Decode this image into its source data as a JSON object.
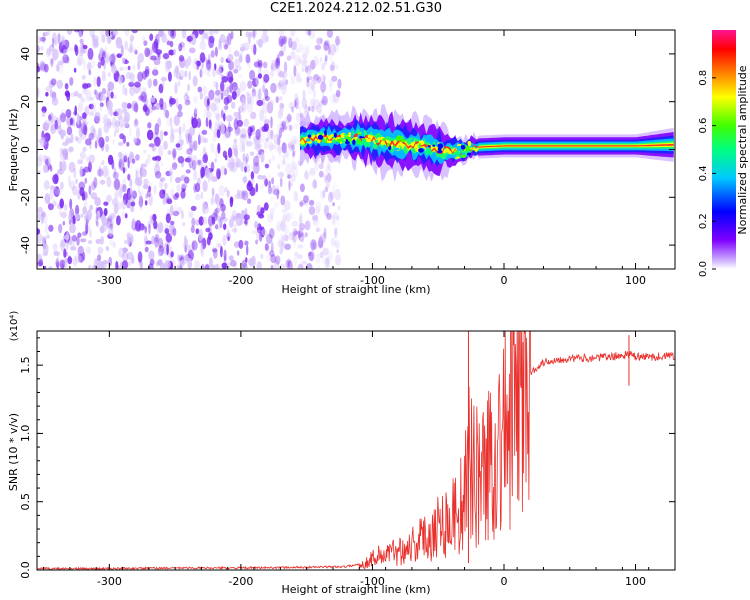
{
  "title": "C2E1.2024.212.02.51.G30",
  "colors": {
    "spectrogram_noise": "#7a28f0",
    "spectrogram_light": "#d6c2fb",
    "snr_line": "#e8302c"
  },
  "chart_data": [
    {
      "type": "heatmap",
      "title": "C2E1.2024.212.02.51.G30",
      "xlabel": "Height of straight line (km)",
      "ylabel": "Frequency (Hz)",
      "xlim": [
        -355,
        130
      ],
      "ylim": [
        -50,
        50
      ],
      "x_ticks": [
        -300,
        -200,
        -100,
        0,
        100
      ],
      "y_ticks": [
        40,
        20,
        0,
        -20,
        -40
      ],
      "noise_region_x": [
        -355,
        -125
      ],
      "signal_track": {
        "x": [
          -155,
          -130,
          -110,
          -90,
          -70,
          -50,
          -35,
          -20,
          0,
          50,
          100,
          130
        ],
        "center_hz": [
          4,
          5,
          5,
          3,
          2,
          0,
          -1,
          1,
          1.5,
          1.5,
          1.5,
          2
        ],
        "spread_hz": [
          4,
          4,
          5,
          6,
          5,
          5,
          3,
          2,
          2,
          2,
          2,
          3
        ]
      },
      "grid": false,
      "colorbar": {
        "label": "Normalized spectral amplitude",
        "range": [
          0,
          1
        ],
        "ticks": [
          "0.0",
          "0.2",
          "0.4",
          "0.6",
          "0.8"
        ],
        "colorscale": [
          "#ffffff",
          "#8000ff",
          "#0000ff",
          "#00c0ff",
          "#00ff00",
          "#ffff00",
          "#ff8000",
          "#ff0000",
          "#ff1493"
        ]
      }
    },
    {
      "type": "line",
      "xlabel": "Height of straight line (km)",
      "ylabel": "SNR (10 * v/v)",
      "y_multiplier_label": "(x10⁴)",
      "xlim": [
        -355,
        130
      ],
      "ylim": [
        0,
        1.75
      ],
      "x_ticks": [
        -300,
        -200,
        -100,
        0,
        100
      ],
      "y_ticks": [
        "0.0",
        "0.5",
        "1.0",
        "1.5"
      ],
      "grid": false,
      "series": [
        {
          "x": [
            -355,
            -300,
            -250,
            -200,
            -150,
            -120,
            -105,
            -100,
            -90,
            -80,
            -70,
            -60,
            -50,
            -40,
            -30,
            -25,
            -20,
            -10,
            0,
            10,
            20,
            30,
            40,
            50,
            60,
            80,
            90,
            95,
            100,
            110,
            130
          ],
          "y": [
            0.01,
            0.01,
            0.015,
            0.015,
            0.02,
            0.025,
            0.05,
            0.1,
            0.12,
            0.15,
            0.2,
            0.25,
            0.35,
            0.4,
            0.55,
            0.9,
            0.7,
            0.85,
            1.05,
            1.25,
            1.45,
            1.52,
            1.54,
            1.55,
            1.55,
            1.56,
            1.57,
            1.58,
            1.56,
            1.56,
            1.57
          ]
        }
      ]
    }
  ]
}
